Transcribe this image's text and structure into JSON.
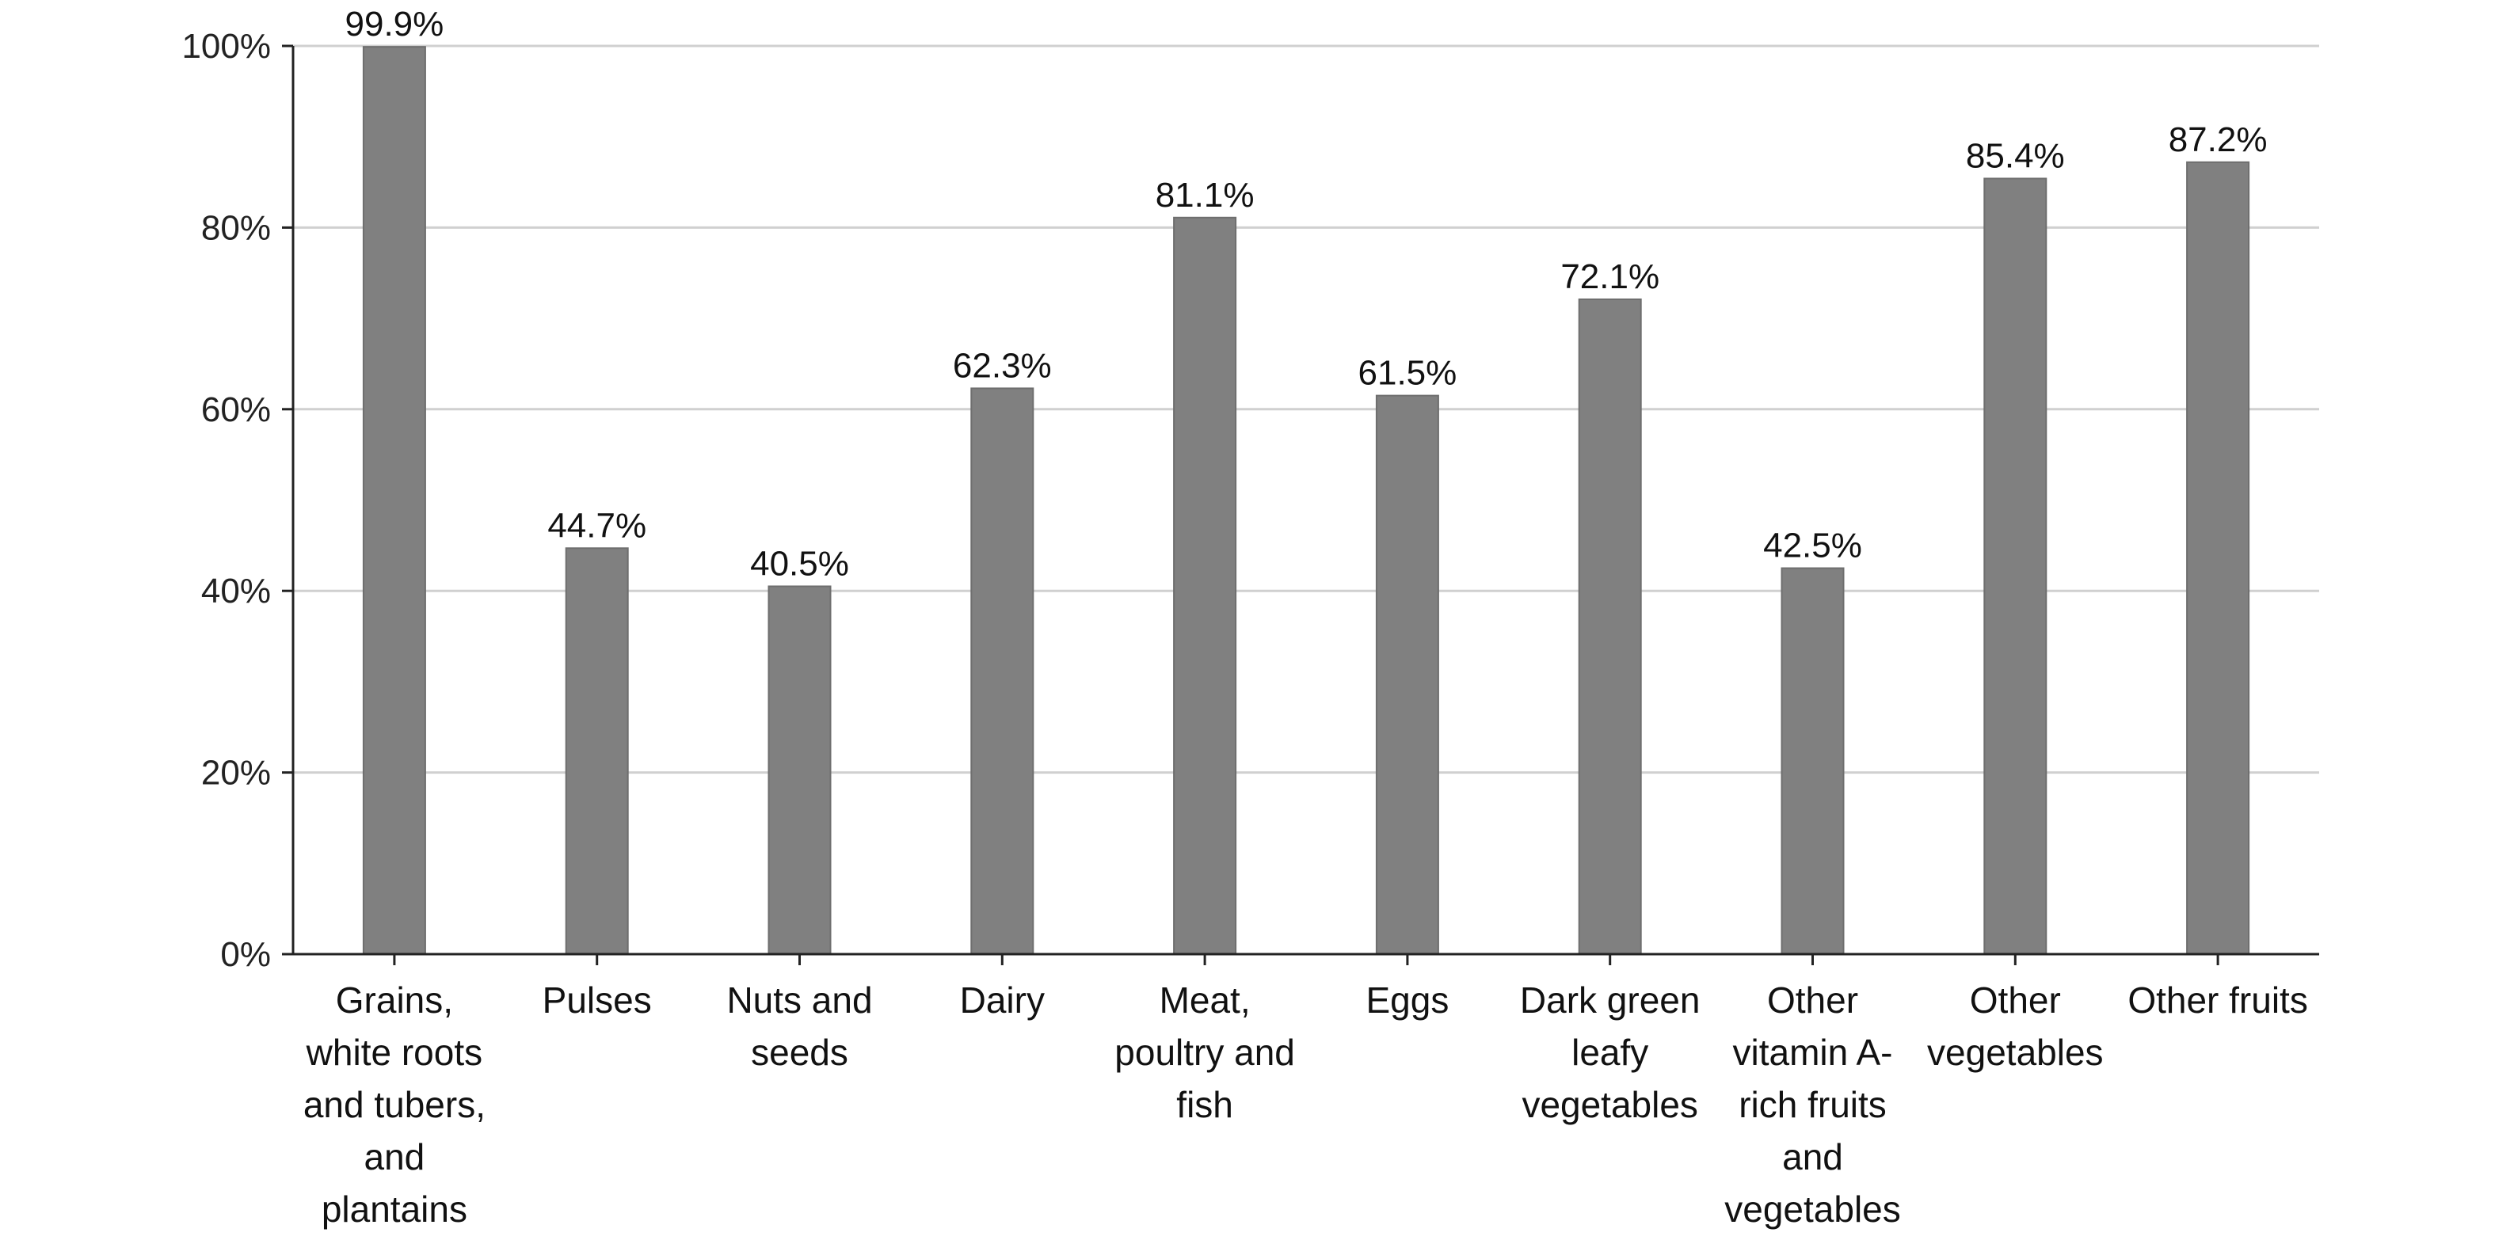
{
  "chart_data": {
    "type": "bar",
    "title": "",
    "xlabel": "",
    "ylabel": "",
    "ylim": [
      0,
      100
    ],
    "yticks": [
      0,
      20,
      40,
      60,
      80,
      100
    ],
    "ytick_labels": [
      "0%",
      "20%",
      "40%",
      "60%",
      "80%",
      "100%"
    ],
    "grid": true,
    "legend": "none",
    "bar_color": "#808080",
    "categories": [
      [
        "Grains,",
        "white roots",
        "and tubers,",
        "and",
        "plantains"
      ],
      [
        "Pulses"
      ],
      [
        "Nuts and",
        "seeds"
      ],
      [
        "Dairy"
      ],
      [
        "Meat,",
        "poultry and",
        "fish"
      ],
      [
        "Eggs"
      ],
      [
        "Dark green",
        "leafy",
        "vegetables"
      ],
      [
        "Other",
        "vitamin A-",
        "rich fruits",
        "and",
        "vegetables"
      ],
      [
        "Other",
        "vegetables"
      ],
      [
        "Other fruits"
      ]
    ],
    "values": [
      99.9,
      44.7,
      40.5,
      62.3,
      81.1,
      61.5,
      72.1,
      42.5,
      85.4,
      87.2
    ],
    "data_labels": [
      "99.9%",
      "44.7%",
      "40.5%",
      "62.3%",
      "81.1%",
      "61.5%",
      "72.1%",
      "42.5%",
      "85.4%",
      "87.2%"
    ]
  }
}
